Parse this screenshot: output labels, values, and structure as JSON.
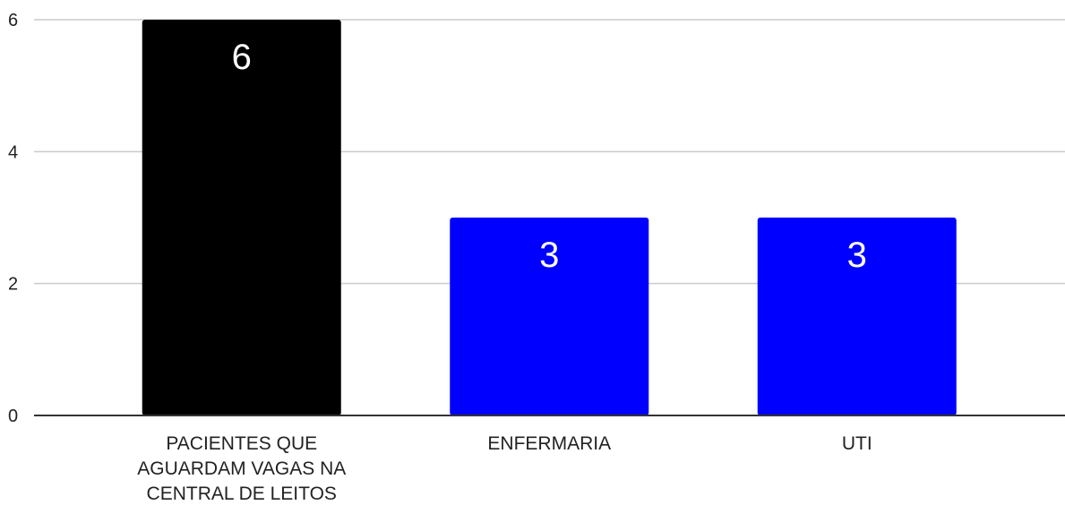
{
  "chart_data": {
    "type": "bar",
    "title": "",
    "xlabel": "",
    "ylabel": "",
    "categories": [
      "PACIENTES QUE AGUARDAM VAGAS NA CENTRAL DE LEITOS",
      "ENFERMARIA",
      "UTI"
    ],
    "category_lines": [
      [
        "PACIENTES QUE",
        "AGUARDAM VAGAS NA",
        "CENTRAL DE LEITOS"
      ],
      [
        "ENFERMARIA"
      ],
      [
        "UTI"
      ]
    ],
    "values": [
      6,
      3,
      3
    ],
    "bar_colors": [
      "#000000",
      "#0000ff",
      "#0000ff"
    ],
    "data_labels": [
      "6",
      "3",
      "3"
    ],
    "ylim": [
      0,
      6
    ],
    "yticks": [
      0,
      2,
      4,
      6
    ],
    "grid": true,
    "legend": "none"
  },
  "colors": {
    "grid": "#cccccc",
    "axis": "#333333",
    "label_text": "#222222",
    "data_label_text": "#ffffff"
  }
}
